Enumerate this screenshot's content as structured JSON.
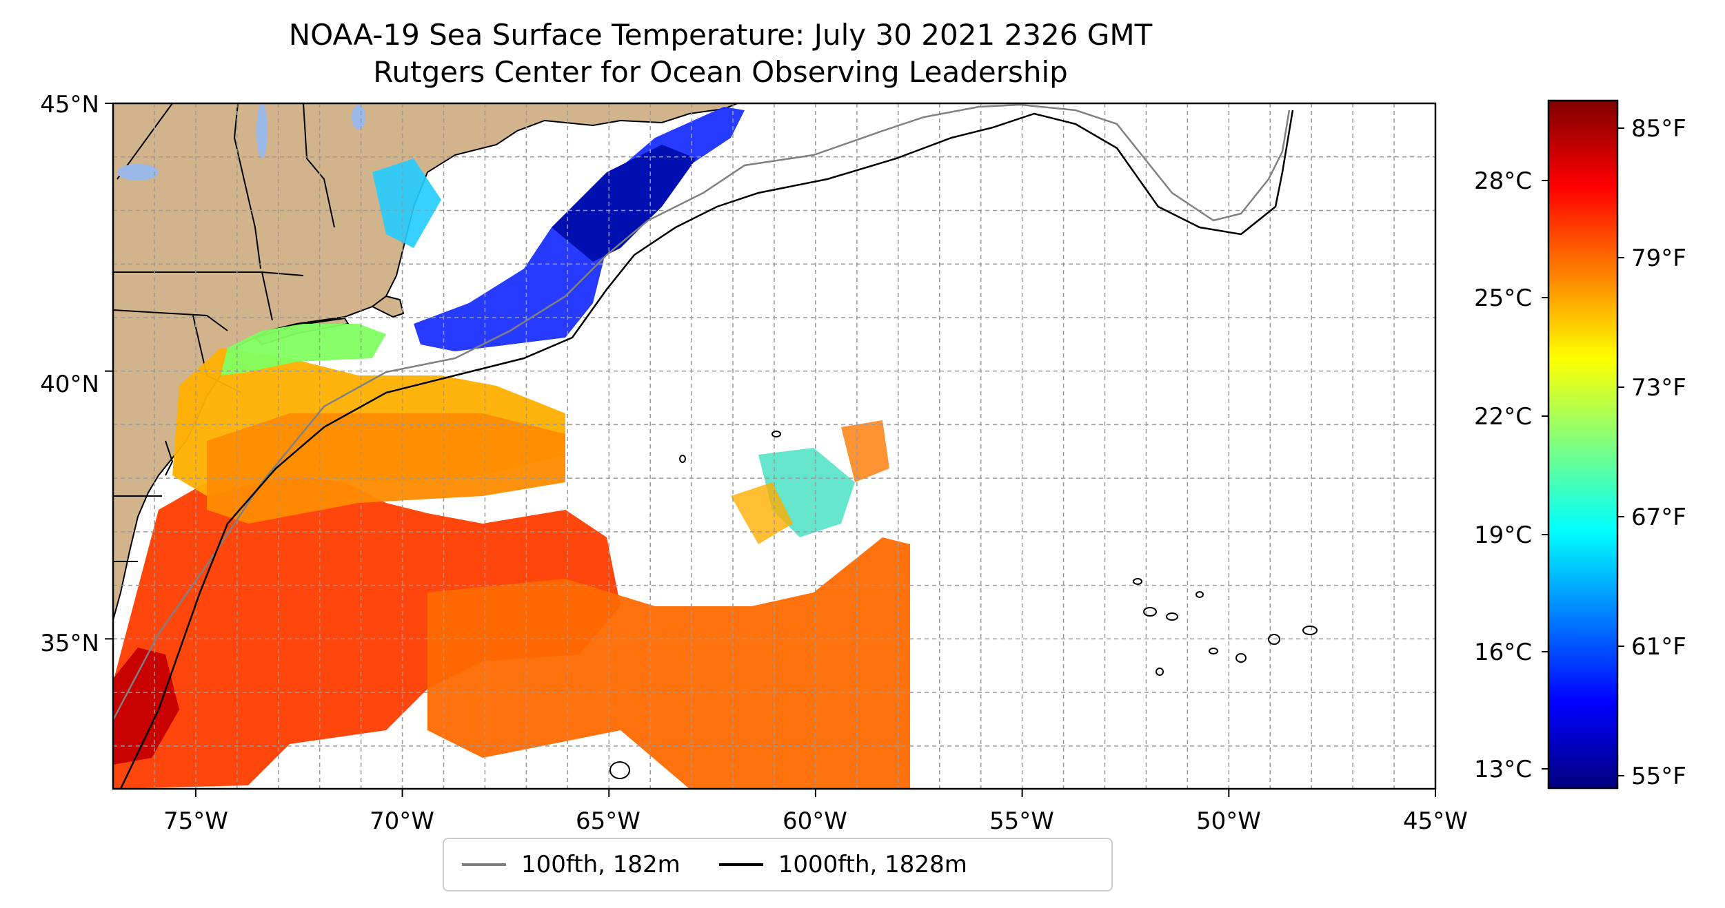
{
  "title": {
    "line1": "NOAA-19 Sea Surface Temperature: July 30 2021 2326 GMT",
    "line2": "Rutgers Center for Ocean Observing Leadership"
  },
  "axes": {
    "lat_ticks": [
      "45°N",
      "40°N",
      "35°N"
    ],
    "lon_ticks": [
      "75°W",
      "70°W",
      "65°W",
      "60°W",
      "55°W",
      "50°W",
      "45°W"
    ],
    "lon_range": [
      -77,
      -45
    ],
    "lat_range": [
      32.2,
      45
    ],
    "grid": true
  },
  "colorbar": {
    "celsius_ticks": [
      "28°C",
      "25°C",
      "22°C",
      "19°C",
      "16°C",
      "13°C"
    ],
    "fahrenheit_ticks": [
      "85°F",
      "79°F",
      "73°F",
      "67°F",
      "61°F",
      "55°F"
    ],
    "colormap": "jet",
    "colors": [
      "#00007f",
      "#0000ff",
      "#007fff",
      "#00ffff",
      "#7fff7f",
      "#ffff00",
      "#ff7f00",
      "#ff0000",
      "#7f0000"
    ]
  },
  "legend": {
    "items": [
      {
        "label": "100fth, 182m",
        "color": "#808080"
      },
      {
        "label": "1000fth, 1828m",
        "color": "#000000"
      }
    ]
  },
  "colors": {
    "land": "#d2b48c",
    "lakes": "#9ab8e8"
  }
}
